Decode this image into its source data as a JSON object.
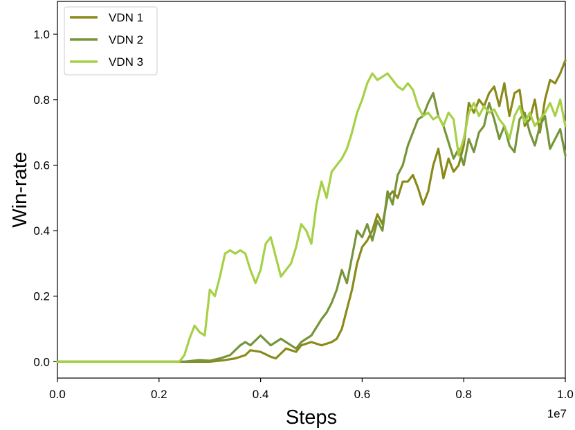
{
  "chart_data": {
    "type": "line",
    "title": "",
    "xlabel": "Steps",
    "ylabel": "Win-rate",
    "x_offset_label": "1e7",
    "xlim": [
      0.0,
      1.0
    ],
    "ylim": [
      -0.05,
      1.1
    ],
    "x_ticks": [
      "0.0",
      "0.2",
      "0.4",
      "0.6",
      "0.8",
      "1.0"
    ],
    "y_ticks": [
      "0.0",
      "0.2",
      "0.4",
      "0.6",
      "0.8",
      "1.0"
    ],
    "grid": false,
    "legend_position": "upper-left",
    "series": [
      {
        "name": "VDN 1",
        "color": "#8a8a1a",
        "x": [
          0.0,
          0.1,
          0.2,
          0.22,
          0.25,
          0.28,
          0.3,
          0.33,
          0.35,
          0.37,
          0.38,
          0.4,
          0.42,
          0.43,
          0.45,
          0.47,
          0.48,
          0.5,
          0.52,
          0.54,
          0.55,
          0.56,
          0.57,
          0.58,
          0.59,
          0.6,
          0.61,
          0.62,
          0.63,
          0.64,
          0.65,
          0.66,
          0.67,
          0.68,
          0.69,
          0.7,
          0.71,
          0.72,
          0.73,
          0.74,
          0.75,
          0.76,
          0.77,
          0.78,
          0.79,
          0.8,
          0.81,
          0.82,
          0.83,
          0.84,
          0.85,
          0.86,
          0.87,
          0.88,
          0.89,
          0.9,
          0.91,
          0.92,
          0.93,
          0.94,
          0.95,
          0.96,
          0.97,
          0.98,
          0.99,
          1.0
        ],
        "y": [
          0.0,
          0.0,
          0.0,
          0.0,
          0.0,
          0.0,
          0.0,
          0.005,
          0.01,
          0.02,
          0.035,
          0.03,
          0.015,
          0.01,
          0.04,
          0.03,
          0.05,
          0.06,
          0.05,
          0.06,
          0.07,
          0.1,
          0.16,
          0.22,
          0.3,
          0.35,
          0.37,
          0.4,
          0.45,
          0.42,
          0.5,
          0.52,
          0.5,
          0.55,
          0.55,
          0.57,
          0.53,
          0.48,
          0.52,
          0.6,
          0.65,
          0.56,
          0.62,
          0.58,
          0.6,
          0.66,
          0.79,
          0.76,
          0.8,
          0.78,
          0.82,
          0.84,
          0.78,
          0.85,
          0.75,
          0.82,
          0.83,
          0.72,
          0.74,
          0.8,
          0.7,
          0.8,
          0.86,
          0.85,
          0.88,
          0.92
        ]
      },
      {
        "name": "VDN 2",
        "color": "#76953a",
        "x": [
          0.0,
          0.1,
          0.2,
          0.25,
          0.28,
          0.3,
          0.32,
          0.34,
          0.36,
          0.37,
          0.38,
          0.4,
          0.42,
          0.44,
          0.45,
          0.46,
          0.47,
          0.48,
          0.5,
          0.52,
          0.53,
          0.54,
          0.55,
          0.56,
          0.57,
          0.58,
          0.59,
          0.6,
          0.61,
          0.62,
          0.63,
          0.64,
          0.65,
          0.66,
          0.67,
          0.68,
          0.69,
          0.7,
          0.71,
          0.72,
          0.73,
          0.74,
          0.75,
          0.76,
          0.77,
          0.78,
          0.79,
          0.8,
          0.81,
          0.82,
          0.83,
          0.84,
          0.85,
          0.86,
          0.87,
          0.88,
          0.89,
          0.9,
          0.91,
          0.92,
          0.93,
          0.94,
          0.95,
          0.96,
          0.97,
          0.98,
          0.99,
          1.0
        ],
        "y": [
          0.0,
          0.0,
          0.0,
          0.0,
          0.005,
          0.003,
          0.01,
          0.02,
          0.05,
          0.06,
          0.05,
          0.08,
          0.05,
          0.07,
          0.06,
          0.05,
          0.04,
          0.06,
          0.08,
          0.13,
          0.15,
          0.18,
          0.22,
          0.28,
          0.24,
          0.32,
          0.4,
          0.38,
          0.42,
          0.37,
          0.43,
          0.4,
          0.52,
          0.48,
          0.57,
          0.6,
          0.66,
          0.7,
          0.74,
          0.75,
          0.79,
          0.82,
          0.75,
          0.72,
          0.67,
          0.62,
          0.65,
          0.6,
          0.68,
          0.64,
          0.7,
          0.72,
          0.79,
          0.74,
          0.68,
          0.72,
          0.66,
          0.64,
          0.74,
          0.76,
          0.7,
          0.66,
          0.72,
          0.75,
          0.65,
          0.68,
          0.71,
          0.63
        ]
      },
      {
        "name": "VDN 3",
        "color": "#a6d045",
        "x": [
          0.0,
          0.1,
          0.2,
          0.24,
          0.25,
          0.26,
          0.27,
          0.28,
          0.29,
          0.3,
          0.31,
          0.32,
          0.33,
          0.34,
          0.35,
          0.36,
          0.37,
          0.38,
          0.39,
          0.4,
          0.41,
          0.42,
          0.43,
          0.44,
          0.45,
          0.46,
          0.47,
          0.48,
          0.49,
          0.5,
          0.51,
          0.52,
          0.53,
          0.54,
          0.55,
          0.56,
          0.57,
          0.58,
          0.59,
          0.6,
          0.61,
          0.62,
          0.63,
          0.64,
          0.65,
          0.66,
          0.67,
          0.68,
          0.69,
          0.7,
          0.71,
          0.72,
          0.73,
          0.74,
          0.75,
          0.76,
          0.77,
          0.78,
          0.79,
          0.8,
          0.81,
          0.82,
          0.83,
          0.84,
          0.85,
          0.86,
          0.87,
          0.88,
          0.89,
          0.9,
          0.91,
          0.92,
          0.93,
          0.94,
          0.95,
          0.96,
          0.97,
          0.98,
          0.99,
          1.0
        ],
        "y": [
          0.0,
          0.0,
          0.0,
          0.0,
          0.02,
          0.07,
          0.11,
          0.09,
          0.08,
          0.22,
          0.2,
          0.26,
          0.33,
          0.34,
          0.33,
          0.34,
          0.33,
          0.28,
          0.24,
          0.28,
          0.36,
          0.38,
          0.32,
          0.26,
          0.28,
          0.3,
          0.35,
          0.42,
          0.4,
          0.36,
          0.48,
          0.55,
          0.5,
          0.58,
          0.6,
          0.62,
          0.65,
          0.7,
          0.76,
          0.8,
          0.85,
          0.88,
          0.86,
          0.87,
          0.88,
          0.86,
          0.84,
          0.83,
          0.85,
          0.83,
          0.78,
          0.75,
          0.76,
          0.74,
          0.75,
          0.72,
          0.76,
          0.74,
          0.63,
          0.68,
          0.76,
          0.79,
          0.75,
          0.78,
          0.76,
          0.77,
          0.74,
          0.72,
          0.68,
          0.75,
          0.78,
          0.73,
          0.76,
          0.72,
          0.74,
          0.76,
          0.79,
          0.75,
          0.8,
          0.72
        ]
      }
    ]
  }
}
